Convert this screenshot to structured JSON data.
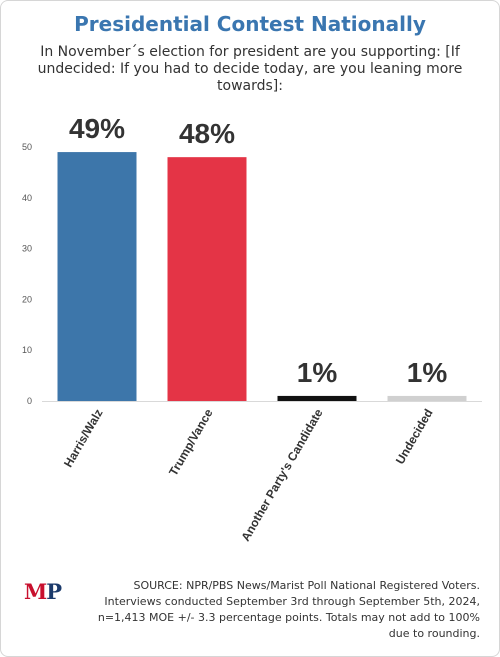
{
  "title": "Presidential Contest Nationally",
  "subtitle": "In November´s election for president are you supporting: [If undecided: If you had to decide today, are you leaning more towards]:",
  "logo": {
    "m": "M",
    "p": "P"
  },
  "source": "SOURCE: NPR/PBS News/Marist Poll National Registered Voters. Interviews conducted September 3rd through September 5th, 2024, n=1,413 MOE +/- 3.3 percentage points. Totals may not add to 100% due to rounding.",
  "chart_data": {
    "type": "bar",
    "categories": [
      "Harris/Walz",
      "Trump/Vance",
      "Another Party's Candidate",
      "Undecided"
    ],
    "values": [
      49,
      48,
      1,
      1
    ],
    "data_labels": [
      "49%",
      "48%",
      "1%",
      "1%"
    ],
    "colors": [
      "#3d76aa",
      "#e43446",
      "#111111",
      "#d0d0d0"
    ],
    "ylim": [
      0,
      50
    ],
    "yticks": [
      0,
      10,
      20,
      30,
      40,
      50
    ],
    "grid": false
  }
}
